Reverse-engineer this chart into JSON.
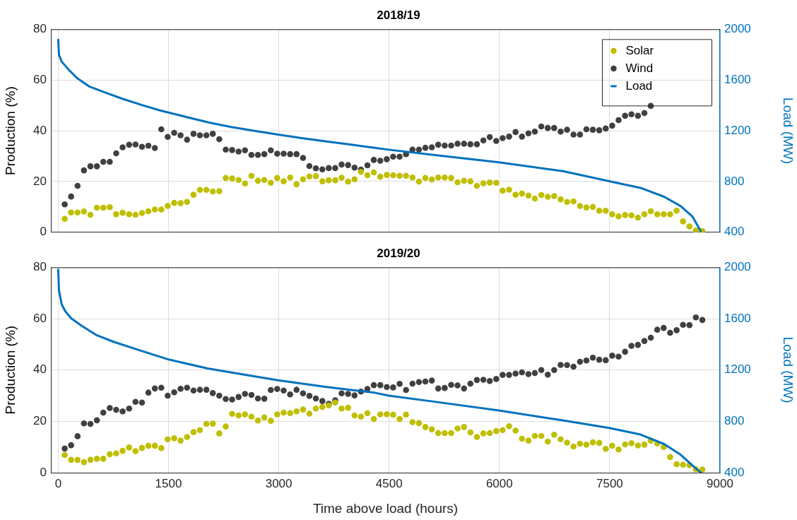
{
  "chart_data": [
    {
      "type": "scatter",
      "title": "2018/19",
      "ylabel": "Production (%)",
      "y2label": "Load (MW)",
      "x": [
        88,
        175,
        263,
        350,
        438,
        526,
        613,
        701,
        788,
        876,
        964,
        1051,
        1139,
        1226,
        1314,
        1402,
        1489,
        1577,
        1664,
        1752,
        1840,
        1927,
        2015,
        2102,
        2190,
        2278,
        2365,
        2453,
        2540,
        2628,
        2716,
        2803,
        2891,
        2978,
        3066,
        3154,
        3241,
        3329,
        3416,
        3504,
        3592,
        3679,
        3767,
        3854,
        3942,
        4030,
        4117,
        4205,
        4292,
        4380,
        4468,
        4555,
        4643,
        4730,
        4818,
        4906,
        4993,
        5081,
        5168,
        5256,
        5344,
        5431,
        5519,
        5606,
        5694,
        5782,
        5869,
        5957,
        6044,
        6132,
        6220,
        6307,
        6395,
        6482,
        6570,
        6658,
        6745,
        6833,
        6920,
        7008,
        7096,
        7183,
        7271,
        7358,
        7446,
        7534,
        7621,
        7709,
        7796,
        7884,
        7972,
        8059,
        8147,
        8234,
        8322,
        8410,
        8497,
        8585,
        8672,
        8760
      ],
      "series": [
        {
          "name": "Solar",
          "marker": "circle",
          "color": "#bfbf00",
          "values": [
            5.3,
            7.8,
            7.8,
            8.2,
            6.9,
            9.7,
            9.7,
            9.9,
            7.1,
            7.7,
            7.1,
            6.9,
            7.6,
            8.3,
            9.0,
            9.0,
            10.4,
            11.6,
            11.5,
            12.0,
            14.8,
            16.7,
            16.7,
            16.1,
            16.2,
            21.4,
            21.2,
            20.6,
            19.2,
            22.2,
            20.3,
            20.6,
            19.5,
            21.4,
            20.1,
            21.6,
            18.9,
            20.9,
            22.0,
            22.1,
            20.1,
            20.5,
            20.5,
            21.5,
            20.0,
            20.9,
            23.8,
            22.5,
            23.6,
            21.9,
            22.6,
            22.5,
            22.3,
            22.3,
            21.6,
            20.0,
            21.4,
            20.8,
            21.6,
            21.6,
            21.4,
            19.7,
            20.3,
            20.1,
            18.3,
            19.3,
            19.6,
            19.5,
            16.4,
            16.8,
            14.8,
            15.3,
            14.5,
            13.3,
            14.7,
            14.0,
            14.3,
            13.0,
            12.0,
            12.2,
            10.4,
            9.8,
            10.0,
            8.5,
            8.5,
            7.1,
            6.3,
            6.8,
            6.7,
            5.8,
            7.1,
            8.3,
            7.1,
            7.1,
            7.1,
            8.5,
            4.3,
            2.3,
            0.7,
            0.5
          ]
        },
        {
          "name": "Wind",
          "marker": "circle",
          "color": "#404040",
          "values": [
            11.0,
            14.1,
            18.3,
            24.4,
            26.0,
            26.0,
            27.8,
            27.8,
            31.1,
            33.5,
            34.5,
            34.6,
            33.7,
            34.1,
            33.2,
            40.6,
            37.6,
            39.2,
            38.2,
            36.5,
            38.8,
            38.2,
            38.2,
            38.8,
            36.7,
            32.6,
            32.4,
            31.8,
            32.3,
            30.5,
            30.5,
            30.8,
            32.3,
            31.0,
            31.0,
            30.8,
            30.8,
            29.3,
            26.1,
            25.2,
            24.8,
            25.3,
            25.3,
            26.7,
            26.5,
            25.5,
            24.7,
            26.4,
            28.5,
            28.2,
            28.8,
            29.8,
            29.8,
            30.8,
            32.6,
            32.6,
            33.3,
            33.5,
            34.5,
            34.2,
            34.2,
            34.9,
            34.9,
            34.7,
            34.7,
            36.2,
            37.5,
            36.0,
            37.1,
            37.7,
            39.5,
            37.7,
            39.0,
            39.7,
            41.7,
            41.1,
            41.1,
            39.7,
            40.4,
            38.5,
            38.5,
            40.6,
            40.4,
            40.2,
            40.9,
            42.0,
            44.2,
            45.9,
            46.5,
            45.9,
            47.0,
            49.8,
            null,
            null,
            null,
            null,
            null,
            null,
            null,
            null
          ]
        },
        {
          "name": "Load",
          "type": "line",
          "marker": "none",
          "axis": "y2",
          "color": "#0072bd",
          "x": [
            0,
            10,
            48,
            144,
            256,
            416,
            624,
            864,
            1136,
            1392,
            1776,
            2064,
            2352,
            2672,
            2992,
            3312,
            3632,
            3952,
            4304,
            4496,
            5104,
            5994,
            6864,
            7494,
            7920,
            8240,
            8464,
            8624,
            8736
          ],
          "values": [
            1918,
            1799,
            1744,
            1680,
            1615,
            1551,
            1505,
            1454,
            1403,
            1359,
            1304,
            1263,
            1230,
            1199,
            1170,
            1142,
            1117,
            1093,
            1065,
            1051,
            1010,
            952,
            882,
            803,
            750,
            680,
            607,
            525,
            411
          ]
        }
      ],
      "xlim": [
        -100,
        9000
      ],
      "xticks": [
        0,
        1500,
        3000,
        4500,
        6000,
        7500,
        9000
      ],
      "ylim": [
        0,
        80
      ],
      "yticks": [
        0,
        20,
        40,
        60,
        80
      ],
      "y2lim": [
        400,
        2000
      ],
      "y2ticks": [
        400,
        800,
        1200,
        1600,
        2000
      ],
      "grid": true,
      "legend": "top right",
      "tick_labels": "y"
    },
    {
      "type": "scatter",
      "title": "2019/20",
      "xlabel": "Time above load (hours)",
      "ylabel": "Production (%)",
      "y2label": "Load (MW)",
      "x": [
        88,
        175,
        263,
        350,
        438,
        526,
        613,
        701,
        788,
        876,
        964,
        1051,
        1139,
        1226,
        1314,
        1402,
        1489,
        1577,
        1664,
        1752,
        1840,
        1927,
        2015,
        2102,
        2190,
        2278,
        2365,
        2453,
        2540,
        2628,
        2716,
        2803,
        2891,
        2978,
        3066,
        3154,
        3241,
        3329,
        3416,
        3504,
        3592,
        3679,
        3767,
        3854,
        3942,
        4030,
        4117,
        4205,
        4292,
        4380,
        4468,
        4555,
        4643,
        4730,
        4818,
        4906,
        4993,
        5081,
        5168,
        5256,
        5344,
        5431,
        5519,
        5606,
        5694,
        5782,
        5869,
        5957,
        6044,
        6132,
        6220,
        6307,
        6395,
        6482,
        6570,
        6658,
        6745,
        6833,
        6920,
        7008,
        7096,
        7183,
        7271,
        7358,
        7446,
        7534,
        7621,
        7709,
        7796,
        7884,
        7972,
        8059,
        8147,
        8234,
        8322,
        8410,
        8497,
        8585,
        8672,
        8760
      ],
      "series": [
        {
          "marker": "circle",
          "color": "#bfbf00",
          "values": [
            6.9,
            5.0,
            5.0,
            4.1,
            5.0,
            5.4,
            5.4,
            7.2,
            7.5,
            8.5,
            9.8,
            8.4,
            9.6,
            10.5,
            10.5,
            9.6,
            13.0,
            13.4,
            12.5,
            13.9,
            15.8,
            16.6,
            19.0,
            19.1,
            15.3,
            18.0,
            22.9,
            22.3,
            22.7,
            21.8,
            20.3,
            21.5,
            20.2,
            22.7,
            23.4,
            23.2,
            23.9,
            24.6,
            23.0,
            25.0,
            25.6,
            26.2,
            27.3,
            25.0,
            25.3,
            22.3,
            21.8,
            23.2,
            20.9,
            22.7,
            22.8,
            22.6,
            20.9,
            22.6,
            19.7,
            19.3,
            17.8,
            16.9,
            15.4,
            15.4,
            15.4,
            17.2,
            17.8,
            15.7,
            13.9,
            15.3,
            15.4,
            16.2,
            16.6,
            18.1,
            16.4,
            13.2,
            12.5,
            14.3,
            14.3,
            12.1,
            14.8,
            13.0,
            11.7,
            10.2,
            11.3,
            10.9,
            11.8,
            11.6,
            9.3,
            10.5,
            9.0,
            11.0,
            11.5,
            10.6,
            10.9,
            12.5,
            11.4,
            10.0,
            6.1,
            3.3,
            3.1,
            2.9,
            1.3,
            1.2
          ]
        },
        {
          "marker": "circle",
          "color": "#404040",
          "values": [
            9.4,
            10.7,
            14.2,
            19.2,
            19.0,
            20.4,
            23.4,
            25.2,
            24.5,
            23.9,
            25.0,
            27.6,
            27.3,
            31.2,
            32.8,
            33.1,
            30.0,
            31.3,
            32.7,
            33.1,
            32.0,
            32.3,
            32.3,
            31.0,
            30.0,
            28.7,
            28.5,
            29.5,
            30.7,
            30.3,
            28.9,
            28.8,
            32.2,
            32.6,
            32.0,
            30.5,
            32.3,
            30.9,
            29.9,
            28.9,
            27.9,
            26.8,
            28.2,
            30.9,
            30.7,
            30.1,
            31.6,
            32.6,
            34.1,
            34.1,
            33.4,
            33.2,
            34.6,
            32.2,
            34.7,
            35.3,
            35.5,
            35.9,
            32.8,
            33.0,
            34.2,
            34.0,
            32.8,
            34.7,
            36.1,
            36.2,
            35.7,
            36.5,
            38.1,
            38.1,
            38.6,
            39.1,
            38.4,
            38.8,
            40.0,
            38.2,
            40.0,
            42.0,
            41.9,
            41.3,
            43.2,
            43.7,
            44.8,
            44.0,
            43.8,
            45.6,
            45.2,
            47.1,
            49.4,
            49.8,
            51.3,
            52.6,
            55.7,
            56.4,
            54.5,
            55.5,
            57.6,
            57.5,
            60.5,
            59.5
          ]
        },
        {
          "type": "line",
          "marker": "none",
          "axis": "y2",
          "color": "#0072bd",
          "x": [
            0,
            10,
            48,
            96,
            176,
            320,
            528,
            752,
            1072,
            1501,
            2032,
            2544,
            2992,
            3632,
            4304,
            4496,
            5104,
            5994,
            6864,
            7494,
            7920,
            8240,
            8464,
            8624,
            8736
          ],
          "values": [
            1982,
            1820,
            1710,
            1658,
            1603,
            1544,
            1470,
            1420,
            1360,
            1282,
            1212,
            1163,
            1120,
            1069,
            1023,
            1000,
            954,
            884,
            807,
            748,
            697,
            623,
            540,
            457,
            402
          ]
        }
      ],
      "xlim": [
        -100,
        9000
      ],
      "xticks": [
        0,
        1500,
        3000,
        4500,
        6000,
        7500,
        9000
      ],
      "ylim": [
        0,
        80
      ],
      "yticks": [
        0,
        20,
        40,
        60,
        80
      ],
      "y2lim": [
        400,
        2000
      ],
      "y2ticks": [
        400,
        800,
        1200,
        1600,
        2000
      ],
      "grid": true
    }
  ]
}
